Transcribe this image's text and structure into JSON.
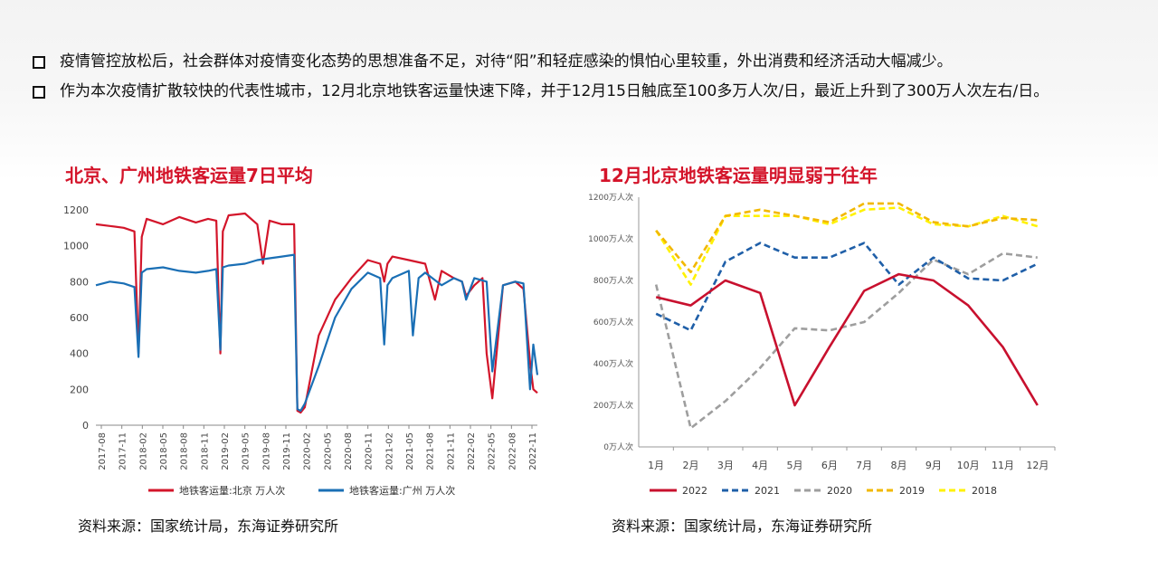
{
  "bullets": [
    {
      "text": "疫情管控放松后，社会群体对疫情变化态势的思想准备不足，对待“阳”和轻症感染的惧怕心里较重，外出消费和经济活动大幅减少。"
    },
    {
      "text": "作为本次疫情扩散较快的代表性城市，12月北京地铁客运量快速下降，并于12月15日触底至100多万人次/日，最近上升到了300万人次左右/日。"
    }
  ],
  "left_chart": {
    "title": "北京、广州地铁客运量7日平均",
    "source": "资料来源：国家统计局，东海证券研究所"
  },
  "right_chart": {
    "title": "12月北京地铁客运量明显弱于往年",
    "source": "资料来源：国家统计局，东海证券研究所"
  },
  "chart_data": [
    {
      "type": "line",
      "title": "北京、广州地铁客运量7日平均",
      "x_ticks": [
        "2017-08",
        "2017-11",
        "2018-02",
        "2018-05",
        "2018-08",
        "2018-11",
        "2019-02",
        "2019-05",
        "2019-08",
        "2019-11",
        "2020-02",
        "2020-05",
        "2020-08",
        "2020-11",
        "2021-02",
        "2021-05",
        "2021-08",
        "2021-11",
        "2022-02",
        "2022-05",
        "2022-08",
        "2022-11"
      ],
      "ylim": [
        0,
        1200
      ],
      "y_ticks": [
        0,
        200,
        400,
        600,
        800,
        1000,
        1200
      ],
      "legend_position": "bottom",
      "colors": {
        "beijing": "#d3152a",
        "guangzhou": "#1a6fb5"
      },
      "series": [
        {
          "name": "地铁客运量:北京 万人次",
          "x": [
            2017.58,
            2017.75,
            2017.92,
            2018.05,
            2018.1,
            2018.14,
            2018.2,
            2018.4,
            2018.6,
            2018.8,
            2018.95,
            2019.05,
            2019.1,
            2019.13,
            2019.2,
            2019.4,
            2019.55,
            2019.62,
            2019.7,
            2019.85,
            2020.0,
            2020.04,
            2020.08,
            2020.13,
            2020.3,
            2020.5,
            2020.7,
            2020.9,
            2021.05,
            2021.1,
            2021.14,
            2021.2,
            2021.4,
            2021.6,
            2021.72,
            2021.8,
            2021.95,
            2022.05,
            2022.1,
            2022.2,
            2022.3,
            2022.35,
            2022.42,
            2022.55,
            2022.7,
            2022.8,
            2022.88,
            2022.92,
            2022.97
          ],
          "y": [
            1120,
            1110,
            1100,
            1080,
            400,
            1050,
            1150,
            1120,
            1160,
            1130,
            1150,
            1140,
            400,
            1080,
            1170,
            1180,
            1120,
            900,
            1140,
            1120,
            1120,
            80,
            70,
            100,
            500,
            700,
            820,
            920,
            900,
            800,
            900,
            940,
            920,
            900,
            700,
            860,
            820,
            800,
            720,
            780,
            820,
            400,
            150,
            780,
            800,
            760,
            350,
            200,
            180
          ]
        },
        {
          "name": "地铁客运量:广州 万人次",
          "x": [
            2017.58,
            2017.75,
            2017.92,
            2018.05,
            2018.1,
            2018.14,
            2018.2,
            2018.4,
            2018.6,
            2018.8,
            2018.95,
            2019.05,
            2019.1,
            2019.13,
            2019.2,
            2019.4,
            2019.55,
            2019.7,
            2019.85,
            2020.0,
            2020.04,
            2020.08,
            2020.13,
            2020.3,
            2020.5,
            2020.7,
            2020.9,
            2021.05,
            2021.1,
            2021.14,
            2021.2,
            2021.4,
            2021.45,
            2021.52,
            2021.6,
            2021.8,
            2021.95,
            2022.05,
            2022.1,
            2022.2,
            2022.35,
            2022.42,
            2022.55,
            2022.7,
            2022.8,
            2022.88,
            2022.92,
            2022.97
          ],
          "y": [
            780,
            800,
            790,
            770,
            380,
            850,
            870,
            880,
            860,
            850,
            860,
            870,
            420,
            880,
            890,
            900,
            920,
            930,
            940,
            950,
            90,
            80,
            120,
            330,
            600,
            760,
            850,
            820,
            450,
            780,
            820,
            860,
            500,
            820,
            850,
            780,
            820,
            800,
            700,
            820,
            800,
            300,
            780,
            800,
            790,
            200,
            450,
            280
          ]
        }
      ]
    },
    {
      "type": "line",
      "title": "12月北京地铁客运量明显弱于往年",
      "categories": [
        "1月",
        "2月",
        "3月",
        "4月",
        "5月",
        "6月",
        "7月",
        "8月",
        "9月",
        "10月",
        "11月",
        "12月"
      ],
      "ylim": [
        0,
        1200
      ],
      "y_ticks": [
        "0万人次",
        "200万人次",
        "400万人次",
        "600万人次",
        "800万人次",
        "1000万人次",
        "1200万人次"
      ],
      "legend_position": "bottom",
      "series": [
        {
          "name": "2022",
          "values": [
            720,
            680,
            800,
            740,
            200,
            480,
            750,
            830,
            800,
            680,
            480,
            200
          ],
          "color": "#c8102e",
          "dash": "solid"
        },
        {
          "name": "2021",
          "values": [
            640,
            560,
            890,
            980,
            910,
            910,
            980,
            780,
            910,
            810,
            800,
            880
          ],
          "color": "#1f5fa8",
          "dash": "dashed"
        },
        {
          "name": "2020",
          "values": [
            780,
            90,
            220,
            380,
            570,
            560,
            600,
            740,
            900,
            830,
            930,
            910
          ],
          "color": "#9e9e9e",
          "dash": "dashed"
        },
        {
          "name": "2019",
          "values": [
            1040,
            840,
            1110,
            1140,
            1110,
            1080,
            1170,
            1170,
            1080,
            1060,
            1100,
            1090
          ],
          "color": "#f2b800",
          "dash": "dashed"
        },
        {
          "name": "2018",
          "values": [
            1040,
            780,
            1110,
            1110,
            1110,
            1070,
            1140,
            1150,
            1070,
            1060,
            1110,
            1060
          ],
          "color": "#fff200",
          "dash": "dashed"
        }
      ]
    }
  ]
}
